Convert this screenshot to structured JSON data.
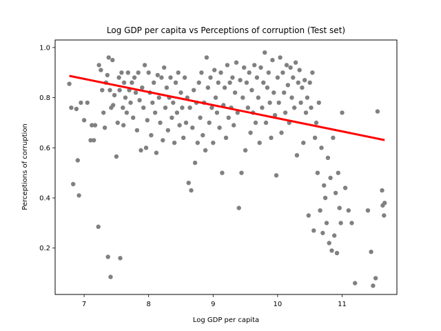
{
  "chart_data": {
    "type": "scatter",
    "title": "Log GDP per capita vs Perceptions of corruption (Test set)",
    "xlabel": "Log GDP per capita",
    "ylabel": "Perceptions of corruption",
    "xlim": [
      6.55,
      11.85
    ],
    "ylim": [
      0.015,
      1.03
    ],
    "xticks": [
      7,
      8,
      9,
      10,
      11
    ],
    "yticks": [
      0.2,
      0.4,
      0.6,
      0.8,
      1.0
    ],
    "xtick_labels": [
      "7",
      "8",
      "9",
      "10",
      "11"
    ],
    "ytick_labels": [
      "0.2",
      "0.4",
      "0.6",
      "0.8",
      "1.0"
    ],
    "grid": false,
    "series": [
      {
        "type": "scatter",
        "color": "#808080",
        "points": [
          [
            6.77,
            0.855
          ],
          [
            6.8,
            0.76
          ],
          [
            6.83,
            0.455
          ],
          [
            6.88,
            0.755
          ],
          [
            6.9,
            0.55
          ],
          [
            6.92,
            0.41
          ],
          [
            6.95,
            0.78
          ],
          [
            7.0,
            0.71
          ],
          [
            7.05,
            0.78
          ],
          [
            7.1,
            0.63
          ],
          [
            7.12,
            0.69
          ],
          [
            7.15,
            0.63
          ],
          [
            7.17,
            0.69
          ],
          [
            7.22,
            0.285
          ],
          [
            7.23,
            0.93
          ],
          [
            7.26,
            0.91
          ],
          [
            7.28,
            0.83
          ],
          [
            7.3,
            0.74
          ],
          [
            7.32,
            0.68
          ],
          [
            7.34,
            0.86
          ],
          [
            7.36,
            0.89
          ],
          [
            7.37,
            0.165
          ],
          [
            7.38,
            0.96
          ],
          [
            7.4,
            0.83
          ],
          [
            7.41,
            0.085
          ],
          [
            7.42,
            0.76
          ],
          [
            7.44,
            0.95
          ],
          [
            7.45,
            0.77
          ],
          [
            7.47,
            0.81
          ],
          [
            7.5,
            0.565
          ],
          [
            7.52,
            0.7
          ],
          [
            7.54,
            0.88
          ],
          [
            7.55,
            0.83
          ],
          [
            7.56,
            0.16
          ],
          [
            7.58,
            0.9
          ],
          [
            7.6,
            0.76
          ],
          [
            7.61,
            0.69
          ],
          [
            7.62,
            0.86
          ],
          [
            7.64,
            0.8
          ],
          [
            7.66,
            0.74
          ],
          [
            7.68,
            0.9
          ],
          [
            7.7,
            0.83
          ],
          [
            7.72,
            0.78
          ],
          [
            7.74,
            0.86
          ],
          [
            7.76,
            0.72
          ],
          [
            7.78,
            0.88
          ],
          [
            7.8,
            0.82
          ],
          [
            7.82,
            0.67
          ],
          [
            7.84,
            0.9
          ],
          [
            7.86,
            0.79
          ],
          [
            7.88,
            0.59
          ],
          [
            7.9,
            0.84
          ],
          [
            7.92,
            0.76
          ],
          [
            7.94,
            0.93
          ],
          [
            7.96,
            0.6
          ],
          [
            7.98,
            0.71
          ],
          [
            8.0,
            0.9
          ],
          [
            8.02,
            0.82
          ],
          [
            8.04,
            0.65
          ],
          [
            8.06,
            0.78
          ],
          [
            8.08,
            0.86
          ],
          [
            8.1,
            0.74
          ],
          [
            8.12,
            0.58
          ],
          [
            8.14,
            0.89
          ],
          [
            8.16,
            0.8
          ],
          [
            8.18,
            0.7
          ],
          [
            8.2,
            0.88
          ],
          [
            8.22,
            0.63
          ],
          [
            8.24,
            0.92
          ],
          [
            8.26,
            0.76
          ],
          [
            8.28,
            0.84
          ],
          [
            8.3,
            0.67
          ],
          [
            8.32,
            0.8
          ],
          [
            8.34,
            0.88
          ],
          [
            8.36,
            0.72
          ],
          [
            8.38,
            0.78
          ],
          [
            8.4,
            0.62
          ],
          [
            8.42,
            0.86
          ],
          [
            8.44,
            0.74
          ],
          [
            8.46,
            0.9
          ],
          [
            8.48,
            0.69
          ],
          [
            8.5,
            0.82
          ],
          [
            8.52,
            0.76
          ],
          [
            8.54,
            0.64
          ],
          [
            8.56,
            0.88
          ],
          [
            8.58,
            0.7
          ],
          [
            8.6,
            0.8
          ],
          [
            8.62,
            0.46
          ],
          [
            8.64,
            0.76
          ],
          [
            8.66,
            0.43
          ],
          [
            8.68,
            0.68
          ],
          [
            8.7,
            0.83
          ],
          [
            8.72,
            0.54
          ],
          [
            8.74,
            0.78
          ],
          [
            8.76,
            0.62
          ],
          [
            8.78,
            0.86
          ],
          [
            8.8,
            0.72
          ],
          [
            8.82,
            0.9
          ],
          [
            8.84,
            0.65
          ],
          [
            8.86,
            0.78
          ],
          [
            8.88,
            0.59
          ],
          [
            8.9,
            0.96
          ],
          [
            8.92,
            0.84
          ],
          [
            8.94,
            0.7
          ],
          [
            8.96,
            0.88
          ],
          [
            8.98,
            0.76
          ],
          [
            9.0,
            0.62
          ],
          [
            9.02,
            0.91
          ],
          [
            9.04,
            0.8
          ],
          [
            9.06,
            0.74
          ],
          [
            9.08,
            0.86
          ],
          [
            9.1,
            0.68
          ],
          [
            9.12,
            0.9
          ],
          [
            9.14,
            0.5
          ],
          [
            9.16,
            0.77
          ],
          [
            9.18,
            0.84
          ],
          [
            9.2,
            0.64
          ],
          [
            9.22,
            0.93
          ],
          [
            9.24,
            0.72
          ],
          [
            9.26,
            0.86
          ],
          [
            9.28,
            0.76
          ],
          [
            9.3,
            0.88
          ],
          [
            9.32,
            0.69
          ],
          [
            9.34,
            0.82
          ],
          [
            9.36,
            0.94
          ],
          [
            9.38,
            0.74
          ],
          [
            9.4,
            0.36
          ],
          [
            9.42,
            0.87
          ],
          [
            9.44,
            0.5
          ],
          [
            9.46,
            0.8
          ],
          [
            9.48,
            0.92
          ],
          [
            9.5,
            0.59
          ],
          [
            9.52,
            0.86
          ],
          [
            9.54,
            0.76
          ],
          [
            9.56,
            0.9
          ],
          [
            9.58,
            0.66
          ],
          [
            9.6,
            0.83
          ],
          [
            9.62,
            0.74
          ],
          [
            9.64,
            0.93
          ],
          [
            9.66,
            0.7
          ],
          [
            9.68,
            0.88
          ],
          [
            9.7,
            0.8
          ],
          [
            9.72,
            0.62
          ],
          [
            9.74,
            0.92
          ],
          [
            9.76,
            0.76
          ],
          [
            9.78,
            0.86
          ],
          [
            9.8,
            0.98
          ],
          [
            9.82,
            0.7
          ],
          [
            9.84,
            0.84
          ],
          [
            9.86,
            0.9
          ],
          [
            9.88,
            0.78
          ],
          [
            9.9,
            0.64
          ],
          [
            9.92,
            0.95
          ],
          [
            9.94,
            0.82
          ],
          [
            9.96,
            0.73
          ],
          [
            9.98,
            0.49
          ],
          [
            10.0,
            0.88
          ],
          [
            10.02,
            0.78
          ],
          [
            10.04,
            0.96
          ],
          [
            10.06,
            0.66
          ],
          [
            10.08,
            0.9
          ],
          [
            10.1,
            0.82
          ],
          [
            10.12,
            0.74
          ],
          [
            10.14,
            0.93
          ],
          [
            10.16,
            0.85
          ],
          [
            10.18,
            0.7
          ],
          [
            10.2,
            0.92
          ],
          [
            10.22,
            0.8
          ],
          [
            10.24,
            0.88
          ],
          [
            10.26,
            0.76
          ],
          [
            10.28,
            0.94
          ],
          [
            10.3,
            0.57
          ],
          [
            10.32,
            0.86
          ],
          [
            10.34,
            0.91
          ],
          [
            10.36,
            0.78
          ],
          [
            10.38,
            0.84
          ],
          [
            10.4,
            0.62
          ],
          [
            10.42,
            0.87
          ],
          [
            10.44,
            0.74
          ],
          [
            10.46,
            0.8
          ],
          [
            10.48,
            0.33
          ],
          [
            10.5,
            0.86
          ],
          [
            10.52,
            0.76
          ],
          [
            10.54,
            0.9
          ],
          [
            10.56,
            0.27
          ],
          [
            10.58,
            0.64
          ],
          [
            10.6,
            0.7
          ],
          [
            10.62,
            0.5
          ],
          [
            10.64,
            0.78
          ],
          [
            10.66,
            0.35
          ],
          [
            10.68,
            0.6
          ],
          [
            10.7,
            0.26
          ],
          [
            10.72,
            0.45
          ],
          [
            10.74,
            0.4
          ],
          [
            10.76,
            0.3
          ],
          [
            10.78,
            0.56
          ],
          [
            10.8,
            0.22
          ],
          [
            10.82,
            0.48
          ],
          [
            10.84,
            0.19
          ],
          [
            10.86,
            0.64
          ],
          [
            10.88,
            0.25
          ],
          [
            10.9,
            0.42
          ],
          [
            10.92,
            0.18
          ],
          [
            10.94,
            0.5
          ],
          [
            10.96,
            0.36
          ],
          [
            10.98,
            0.3
          ],
          [
            11.0,
            0.74
          ],
          [
            11.05,
            0.44
          ],
          [
            11.1,
            0.35
          ],
          [
            11.15,
            0.3
          ],
          [
            11.2,
            0.06
          ],
          [
            11.4,
            0.35
          ],
          [
            11.45,
            0.185
          ],
          [
            11.48,
            0.05
          ],
          [
            11.52,
            0.08
          ],
          [
            11.55,
            0.745
          ],
          [
            11.62,
            0.43
          ],
          [
            11.63,
            0.37
          ],
          [
            11.65,
            0.33
          ],
          [
            11.66,
            0.38
          ]
        ]
      },
      {
        "type": "line",
        "color": "#ff0000",
        "points": [
          [
            6.77,
            0.887
          ],
          [
            11.66,
            0.631
          ]
        ]
      }
    ]
  }
}
